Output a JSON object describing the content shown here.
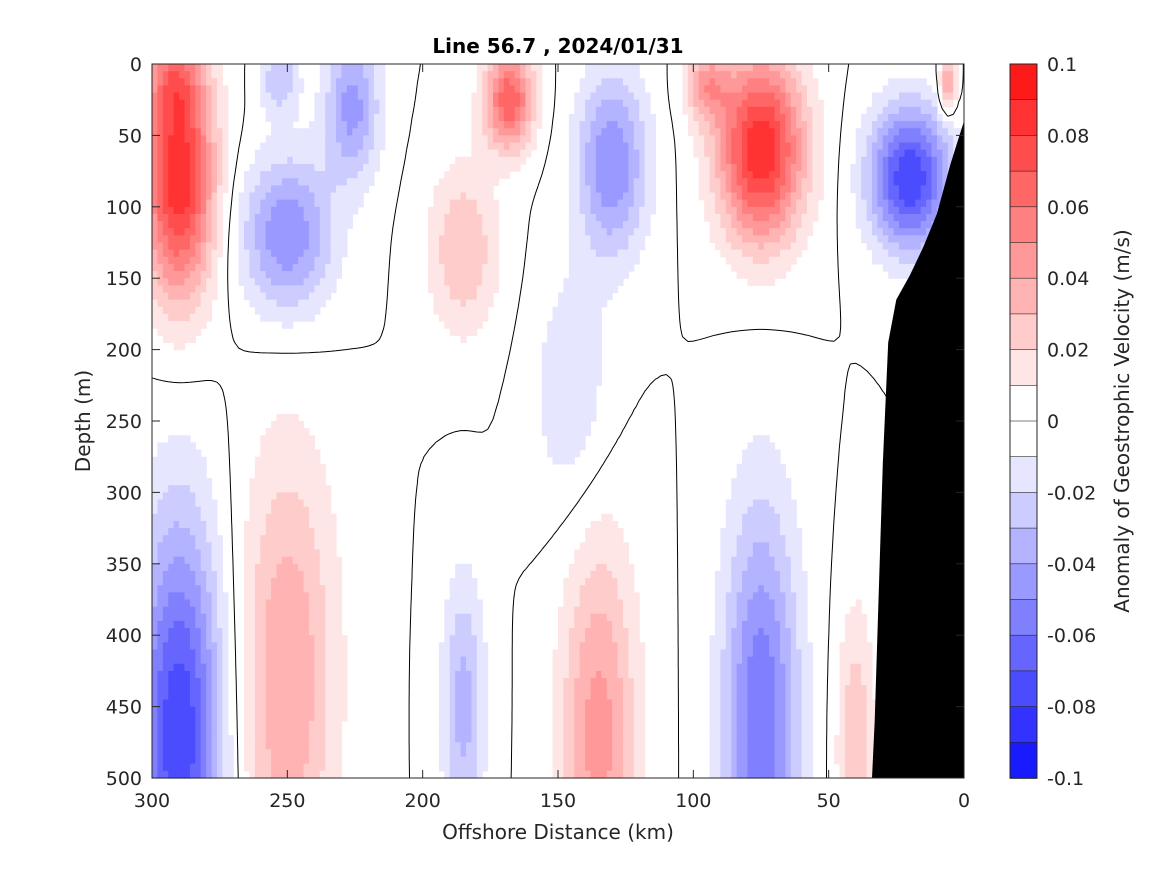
{
  "chart_data": {
    "type": "heatmap",
    "title": "Line 56.7 , 2024/01/31",
    "xlabel": "Offshore Distance (km)",
    "ylabel": "Depth (m)",
    "colorbar_label": "Anomaly of Geostrophic Velocity (m/s)",
    "xlim": [
      300,
      0
    ],
    "ylim": [
      0,
      500
    ],
    "x_reversed": true,
    "y_reversed": true,
    "x_ticks": [
      "300",
      "250",
      "200",
      "150",
      "100",
      "50",
      "0"
    ],
    "y_ticks": [
      "0",
      "50",
      "100",
      "150",
      "200",
      "250",
      "300",
      "350",
      "400",
      "450",
      "500"
    ],
    "colorbar_ticks": [
      "0.1",
      "0.08",
      "0.06",
      "0.04",
      "0.02",
      "0",
      "-0.02",
      "-0.04",
      "-0.06",
      "-0.08",
      "-0.1"
    ],
    "clim": [
      -0.1,
      0.1
    ],
    "contour_step": 0.01,
    "colormap": [
      "#0000ff",
      "#ffffff",
      "#ff0000"
    ],
    "zero_contour_color": "#000000",
    "bathymetry_color": "#000000",
    "bathymetry": {
      "distance_km": [
        0,
        5,
        10,
        15,
        20,
        25,
        28,
        30,
        31,
        32,
        33,
        34,
        0
      ],
      "depth_m": [
        40,
        70,
        105,
        128,
        148,
        165,
        195,
        280,
        340,
        400,
        460,
        500,
        500
      ]
    },
    "features": [
      {
        "distance_km": 290,
        "depth_m": 80,
        "anomaly": 0.09,
        "spread_km": 13,
        "spread_m": 85
      },
      {
        "distance_km": 292,
        "depth_m": 10,
        "anomaly": 0.03,
        "spread_km": 10,
        "spread_m": 30
      },
      {
        "distance_km": 250,
        "depth_m": 120,
        "anomaly": -0.05,
        "spread_km": 17,
        "spread_m": 55
      },
      {
        "distance_km": 226,
        "depth_m": 30,
        "anomaly": -0.045,
        "spread_km": 10,
        "spread_m": 50
      },
      {
        "distance_km": 253,
        "depth_m": 10,
        "anomaly": -0.03,
        "spread_km": 7,
        "spread_m": 25
      },
      {
        "distance_km": 185,
        "depth_m": 130,
        "anomaly": 0.03,
        "spread_km": 13,
        "spread_m": 60
      },
      {
        "distance_km": 168,
        "depth_m": 25,
        "anomaly": 0.07,
        "spread_km": 9,
        "spread_m": 35
      },
      {
        "distance_km": 130,
        "depth_m": 70,
        "anomaly": -0.05,
        "spread_km": 13,
        "spread_m": 65
      },
      {
        "distance_km": 145,
        "depth_m": 230,
        "anomaly": -0.02,
        "spread_km": 14,
        "spread_m": 85
      },
      {
        "distance_km": 75,
        "depth_m": 60,
        "anomaly": 0.09,
        "spread_km": 16,
        "spread_m": 65
      },
      {
        "distance_km": 95,
        "depth_m": 15,
        "anomaly": 0.04,
        "spread_km": 8,
        "spread_m": 25
      },
      {
        "distance_km": 20,
        "depth_m": 80,
        "anomaly": -0.08,
        "spread_km": 15,
        "spread_m": 50
      },
      {
        "distance_km": 6,
        "depth_m": 15,
        "anomaly": 0.05,
        "spread_km": 3,
        "spread_m": 20
      },
      {
        "distance_km": 290,
        "depth_m": 470,
        "anomaly": -0.08,
        "spread_km": 16,
        "spread_m": 150
      },
      {
        "distance_km": 250,
        "depth_m": 430,
        "anomaly": 0.04,
        "spread_km": 18,
        "spread_m": 160
      },
      {
        "distance_km": 185,
        "depth_m": 450,
        "anomaly": -0.035,
        "spread_km": 8,
        "spread_m": 90
      },
      {
        "distance_km": 135,
        "depth_m": 470,
        "anomaly": 0.045,
        "spread_km": 14,
        "spread_m": 140
      },
      {
        "distance_km": 75,
        "depth_m": 460,
        "anomaly": -0.06,
        "spread_km": 14,
        "spread_m": 150
      },
      {
        "distance_km": 40,
        "depth_m": 480,
        "anomaly": 0.03,
        "spread_km": 7,
        "spread_m": 100
      }
    ]
  }
}
